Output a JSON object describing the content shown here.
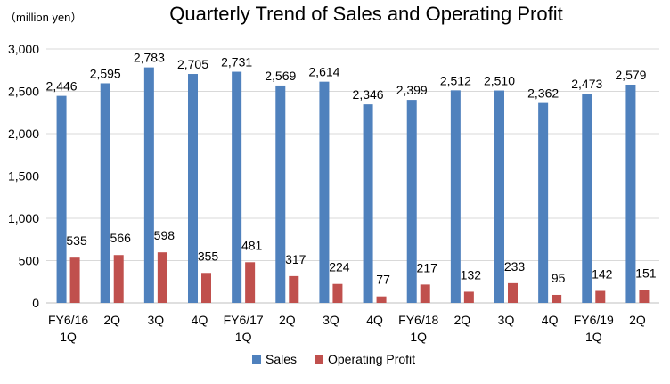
{
  "chart_data": {
    "type": "bar",
    "title": "Quarterly Trend of Sales and Operating Profit",
    "unit_label": "（million yen）",
    "categories": [
      [
        "FY6/16",
        "1Q"
      ],
      [
        "2Q"
      ],
      [
        "3Q"
      ],
      [
        "4Q"
      ],
      [
        "FY6/17",
        "1Q"
      ],
      [
        "2Q"
      ],
      [
        "3Q"
      ],
      [
        "4Q"
      ],
      [
        "FY6/18",
        "1Q"
      ],
      [
        "2Q"
      ],
      [
        "3Q"
      ],
      [
        "4Q"
      ],
      [
        "FY6/19",
        "1Q"
      ],
      [
        "2Q"
      ]
    ],
    "series": [
      {
        "name": "Sales",
        "color": "#4f81bd",
        "values": [
          2446,
          2595,
          2783,
          2705,
          2731,
          2569,
          2614,
          2346,
          2399,
          2512,
          2510,
          2362,
          2473,
          2579
        ]
      },
      {
        "name": "Operating Profit",
        "color": "#c0504d",
        "values": [
          535,
          566,
          598,
          355,
          481,
          317,
          224,
          77,
          217,
          132,
          233,
          95,
          142,
          151
        ]
      }
    ],
    "ylim": [
      0,
      3000
    ],
    "yticks": [
      0,
      500,
      1000,
      1500,
      2000,
      2500,
      3000
    ],
    "grid": true,
    "legend_position": "bottom",
    "data_labels": true
  }
}
